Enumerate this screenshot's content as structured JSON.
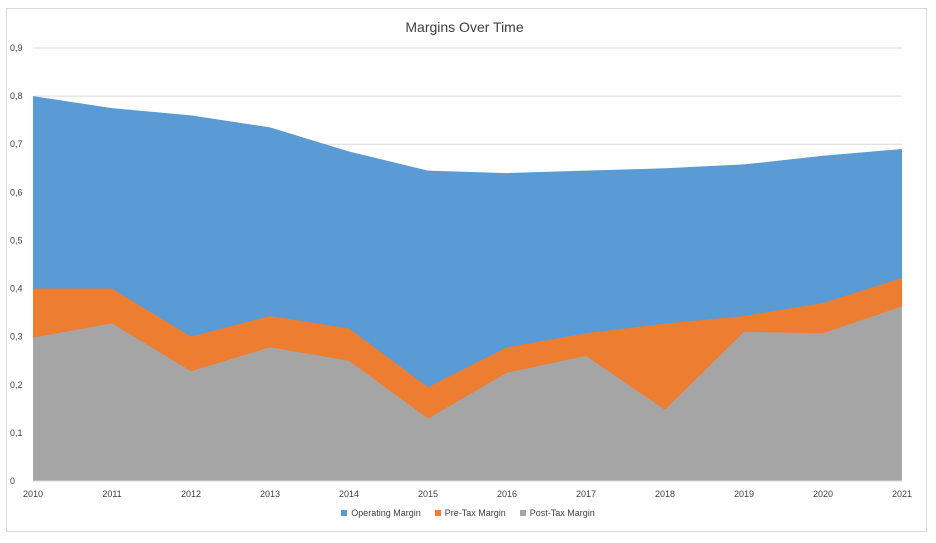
{
  "chart_data": {
    "type": "area",
    "title": "Margins Over Time",
    "xlabel": "",
    "ylabel": "",
    "x": [
      "2010",
      "2011",
      "2012",
      "2013",
      "2014",
      "2015",
      "2016",
      "2017",
      "2018",
      "2019",
      "2020",
      "2021"
    ],
    "ylim": [
      0,
      0.9
    ],
    "yticks": [
      "0",
      "0,1",
      "0,2",
      "0,3",
      "0,4",
      "0,5",
      "0,6",
      "0,7",
      "0,8",
      "0,9"
    ],
    "grid": true,
    "legend_position": "bottom",
    "series": [
      {
        "name": "Operating Margin",
        "color": "#5b9bd5",
        "values": [
          0.8,
          0.775,
          0.76,
          0.735,
          0.685,
          0.645,
          0.64,
          0.645,
          0.65,
          0.658,
          0.676,
          0.69
        ]
      },
      {
        "name": "Pre-Tax Margin",
        "color": "#ed7d31",
        "values": [
          0.4,
          0.4,
          0.3,
          0.343,
          0.317,
          0.195,
          0.278,
          0.307,
          0.327,
          0.343,
          0.37,
          0.422
        ]
      },
      {
        "name": "Post-Tax Margin",
        "color": "#a5a5a5",
        "values": [
          0.298,
          0.328,
          0.228,
          0.278,
          0.25,
          0.13,
          0.225,
          0.26,
          0.148,
          0.31,
          0.307,
          0.363
        ]
      }
    ]
  }
}
